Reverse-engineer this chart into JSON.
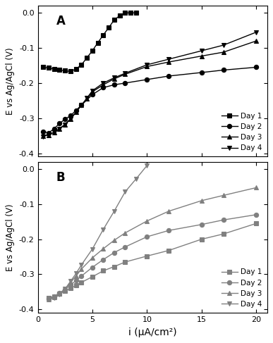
{
  "panel_A": {
    "label": "A",
    "day1": {
      "x": [
        0.5,
        1.0,
        1.5,
        2.0,
        2.5,
        3.0,
        3.5,
        4.0,
        4.5,
        5.0,
        5.5,
        6.0,
        6.5,
        7.0,
        7.5,
        8.0,
        8.5,
        9.0
      ],
      "y": [
        -0.155,
        -0.157,
        -0.16,
        -0.163,
        -0.165,
        -0.167,
        -0.16,
        -0.148,
        -0.128,
        -0.108,
        -0.085,
        -0.063,
        -0.042,
        -0.02,
        -0.008,
        0.0,
        0.0,
        0.0
      ],
      "label": "Day 1",
      "marker": "s"
    },
    "day2": {
      "x": [
        0.5,
        1.0,
        1.5,
        2.0,
        2.5,
        3.0,
        3.5,
        4.0,
        5.0,
        6.0,
        7.0,
        8.0,
        10.0,
        12.0,
        15.0,
        17.0,
        20.0
      ],
      "y": [
        -0.338,
        -0.342,
        -0.33,
        -0.315,
        -0.303,
        -0.293,
        -0.278,
        -0.263,
        -0.233,
        -0.213,
        -0.205,
        -0.2,
        -0.19,
        -0.18,
        -0.17,
        -0.163,
        -0.155
      ],
      "label": "Day 2",
      "marker": "o"
    },
    "day3": {
      "x": [
        0.5,
        1.0,
        1.5,
        2.0,
        2.5,
        3.0,
        3.5,
        4.0,
        4.5,
        5.0,
        6.0,
        7.0,
        8.0,
        10.0,
        12.0,
        15.0,
        17.0,
        20.0
      ],
      "y": [
        -0.35,
        -0.348,
        -0.34,
        -0.33,
        -0.318,
        -0.303,
        -0.283,
        -0.263,
        -0.245,
        -0.225,
        -0.205,
        -0.188,
        -0.175,
        -0.153,
        -0.14,
        -0.123,
        -0.112,
        -0.08
      ],
      "label": "Day 3",
      "marker": "^"
    },
    "day4": {
      "x": [
        0.5,
        1.0,
        1.5,
        2.0,
        2.5,
        3.0,
        3.5,
        4.0,
        4.5,
        5.0,
        6.0,
        7.0,
        8.0,
        10.0,
        12.0,
        15.0,
        17.0,
        20.0
      ],
      "y": [
        -0.352,
        -0.348,
        -0.34,
        -0.33,
        -0.318,
        -0.302,
        -0.283,
        -0.263,
        -0.243,
        -0.222,
        -0.2,
        -0.185,
        -0.172,
        -0.148,
        -0.132,
        -0.108,
        -0.092,
        -0.055
      ],
      "label": "Day 4",
      "marker": "v"
    }
  },
  "panel_B": {
    "label": "B",
    "day1": {
      "x": [
        1.0,
        1.5,
        2.0,
        2.5,
        3.0,
        3.5,
        4.0,
        5.0,
        6.0,
        7.0,
        8.0,
        10.0,
        12.0,
        15.0,
        17.0,
        20.0
      ],
      "y": [
        -0.368,
        -0.363,
        -0.355,
        -0.348,
        -0.34,
        -0.332,
        -0.323,
        -0.307,
        -0.29,
        -0.278,
        -0.265,
        -0.248,
        -0.232,
        -0.2,
        -0.185,
        -0.155
      ],
      "label": "Day 1",
      "marker": "s"
    },
    "day2": {
      "x": [
        1.0,
        1.5,
        2.0,
        2.5,
        3.0,
        3.5,
        4.0,
        5.0,
        6.0,
        7.0,
        8.0,
        10.0,
        12.0,
        15.0,
        17.0,
        20.0
      ],
      "y": [
        -0.37,
        -0.363,
        -0.353,
        -0.343,
        -0.33,
        -0.318,
        -0.305,
        -0.28,
        -0.258,
        -0.238,
        -0.222,
        -0.193,
        -0.175,
        -0.158,
        -0.145,
        -0.13
      ],
      "label": "Day 2",
      "marker": "o"
    },
    "day3": {
      "x": [
        1.0,
        1.5,
        2.0,
        2.5,
        3.0,
        3.5,
        4.0,
        5.0,
        6.0,
        7.0,
        8.0,
        10.0,
        12.0,
        15.0,
        17.0,
        20.0
      ],
      "y": [
        -0.372,
        -0.365,
        -0.355,
        -0.342,
        -0.323,
        -0.305,
        -0.285,
        -0.253,
        -0.227,
        -0.203,
        -0.182,
        -0.148,
        -0.12,
        -0.09,
        -0.075,
        -0.053
      ],
      "label": "Day 3",
      "marker": "^"
    },
    "day4": {
      "x": [
        1.0,
        1.5,
        2.0,
        2.5,
        3.0,
        3.5,
        4.0,
        5.0,
        6.0,
        7.0,
        8.0,
        9.0,
        10.0
      ],
      "y": [
        -0.372,
        -0.367,
        -0.357,
        -0.342,
        -0.32,
        -0.298,
        -0.273,
        -0.228,
        -0.172,
        -0.12,
        -0.065,
        -0.028,
        0.01
      ],
      "label": "Day 4",
      "marker": "v"
    }
  },
  "xlim": [
    0,
    21
  ],
  "ylim": [
    -0.41,
    0.02
  ],
  "xlabel": "i (μA/cm²)",
  "ylabel": "E vs Ag/AgCl (V)",
  "xticks": [
    0,
    5,
    10,
    15,
    20
  ],
  "yticks": [
    -0.4,
    -0.3,
    -0.2,
    -0.1,
    0.0
  ],
  "color_A": "#000000",
  "color_B": "#808080"
}
